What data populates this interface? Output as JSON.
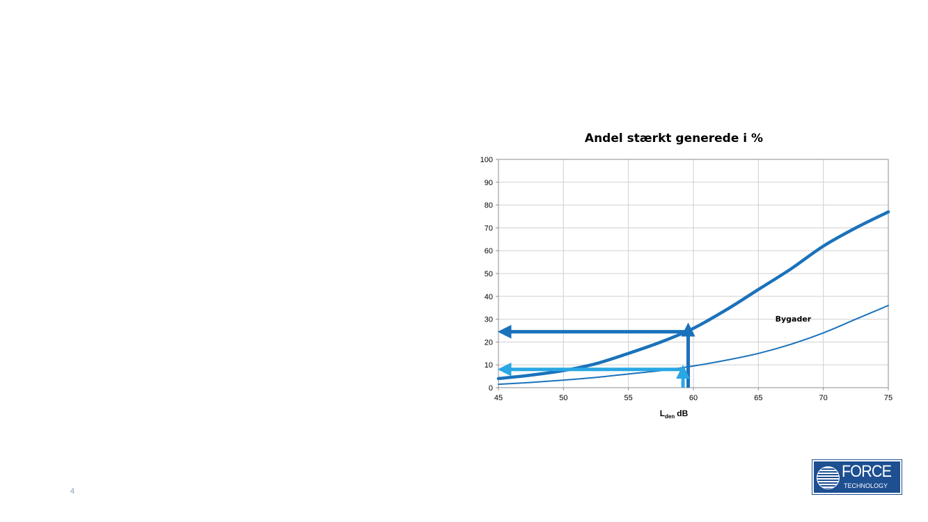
{
  "chart_data": {
    "type": "line",
    "title": "Andel stærkt generede i %",
    "xlabel": {
      "main": "L",
      "subscript": "den",
      "unit": "dB"
    },
    "ylabel": "",
    "xlim": [
      45,
      75
    ],
    "ylim": [
      0,
      100
    ],
    "x_ticks": [
      "45",
      "50",
      "55",
      "60",
      "65",
      "70",
      "75"
    ],
    "y_ticks": [
      "0",
      "10",
      "20",
      "30",
      "40",
      "50",
      "60",
      "70",
      "80",
      "90",
      "100"
    ],
    "grid": true,
    "legend": "none",
    "series": [
      {
        "style": "thick",
        "color": "#1a72bb",
        "x": [
          45,
          47.5,
          50,
          52.5,
          55,
          57.5,
          60,
          62.5,
          65,
          67.5,
          70,
          72.5,
          75
        ],
        "y": [
          4,
          5.5,
          7.5,
          10.5,
          15,
          20,
          26,
          34,
          43,
          52,
          62,
          70,
          77
        ]
      },
      {
        "name": "Bygader",
        "style": "thin",
        "color": "#1a72bb",
        "x": [
          45,
          47.5,
          50,
          52.5,
          55,
          57.5,
          60,
          62.5,
          65,
          67.5,
          70,
          72.5,
          75
        ],
        "y": [
          1.5,
          2.3,
          3.3,
          4.5,
          6,
          7.5,
          9.5,
          12,
          15,
          19,
          24,
          30,
          36
        ]
      }
    ],
    "annotations": [
      {
        "type": "label",
        "text": "Bygader",
        "x": 66.3,
        "y": 29
      },
      {
        "type": "arrow",
        "color": "#1a72bb",
        "from": [
          59.6,
          0
        ],
        "to": [
          59.6,
          27
        ]
      },
      {
        "type": "arrow",
        "color": "#1a72bb",
        "from": [
          59.6,
          24.5
        ],
        "to": [
          45.2,
          24.5
        ]
      },
      {
        "type": "arrow",
        "color": "#2aa7e4",
        "from": [
          59.2,
          0
        ],
        "to": [
          59.2,
          8.5
        ]
      },
      {
        "type": "arrow",
        "color": "#2aa7e4",
        "from": [
          59.2,
          8
        ],
        "to": [
          45.2,
          8
        ]
      }
    ]
  },
  "footer": {
    "page_number": "4",
    "logo": {
      "word": "FORCE",
      "subtitle": "TECHNOLOGY"
    }
  }
}
